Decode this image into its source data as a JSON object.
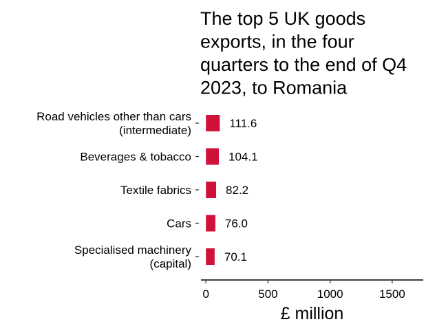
{
  "chart_data": {
    "type": "bar",
    "orientation": "horizontal",
    "title_lines": [
      "The top 5 UK goods",
      "exports, in the four",
      "quarters to the end of Q4",
      "2023, to Romania"
    ],
    "categories": [
      [
        "Road vehicles other than cars",
        "(intermediate)"
      ],
      [
        "Beverages & tobacco"
      ],
      [
        "Textile fabrics"
      ],
      [
        "Cars"
      ],
      [
        "Specialised machinery",
        "(capital)"
      ]
    ],
    "values": [
      111.6,
      104.1,
      82.2,
      76.0,
      70.1
    ],
    "value_labels": [
      "111.6",
      "104.1",
      "82.2",
      "76.0",
      "70.1"
    ],
    "xlabel": "£ million",
    "xlim": [
      -40,
      1750
    ],
    "x_ticks": [
      0,
      500,
      1000,
      1500
    ],
    "x_tick_labels": [
      "0",
      "500",
      "1000",
      "1500"
    ],
    "bar_color": "#d0113a",
    "grid": false,
    "legend": "none"
  }
}
